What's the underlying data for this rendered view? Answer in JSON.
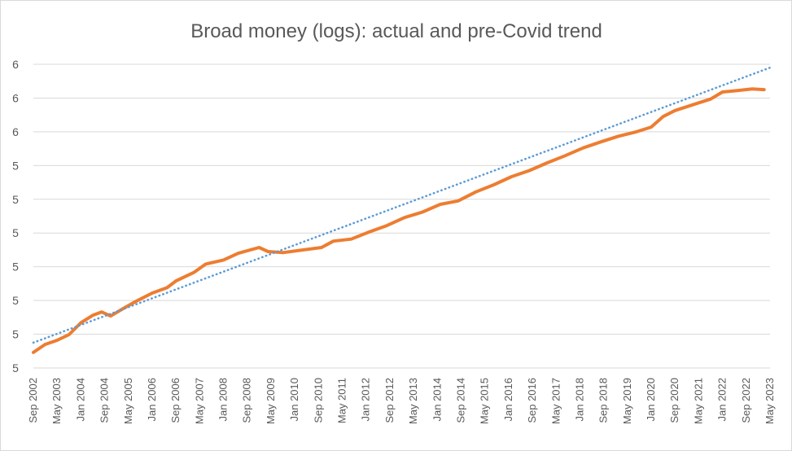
{
  "chart_data": {
    "type": "line",
    "title": "Broad money (logs): actual and pre-Covid trend",
    "xlabel": "",
    "ylabel": "",
    "x_start": "2002-09",
    "x_end": "2023-05",
    "x_tick_labels": [
      "Sep 2002",
      "May 2003",
      "Jan 2004",
      "Sep 2004",
      "May 2005",
      "Jan 2006",
      "Sep 2006",
      "May 2007",
      "Jan 2008",
      "Sep 2008",
      "May 2009",
      "Jan 2010",
      "Sep 2010",
      "May 2011",
      "Jan 2012",
      "Sep 2012",
      "May 2013",
      "Jan 2014",
      "Sep 2014",
      "May 2015",
      "Jan 2016",
      "Sep 2016",
      "May 2017",
      "Jan 2018",
      "Sep 2018",
      "May 2019",
      "Jan 2020",
      "Sep 2020",
      "May 2021",
      "Jan 2022",
      "Sep 2022",
      "May 2023"
    ],
    "y_tick_labels": [
      "5",
      "5",
      "5",
      "5",
      "5",
      "5",
      "5",
      "6",
      "6",
      "6"
    ],
    "ylim": [
      5.2,
      6.1
    ],
    "grid": true,
    "legend": "none",
    "series": [
      {
        "style": "solid",
        "color": "#ED7D31",
        "points": [
          [
            "2002-09",
            5.246
          ],
          [
            "2003-01",
            5.27
          ],
          [
            "2003-05",
            5.282
          ],
          [
            "2003-09",
            5.299
          ],
          [
            "2004-01",
            5.334
          ],
          [
            "2004-05",
            5.356
          ],
          [
            "2004-08",
            5.366
          ],
          [
            "2004-11",
            5.354
          ],
          [
            "2005-03",
            5.375
          ],
          [
            "2005-07",
            5.395
          ],
          [
            "2006-01",
            5.422
          ],
          [
            "2006-06",
            5.438
          ],
          [
            "2006-09",
            5.458
          ],
          [
            "2007-03",
            5.483
          ],
          [
            "2007-07",
            5.508
          ],
          [
            "2008-01",
            5.52
          ],
          [
            "2008-06",
            5.54
          ],
          [
            "2009-01",
            5.557
          ],
          [
            "2009-04",
            5.545
          ],
          [
            "2009-09",
            5.542
          ],
          [
            "2010-04",
            5.55
          ],
          [
            "2010-10",
            5.557
          ],
          [
            "2011-02",
            5.576
          ],
          [
            "2011-08",
            5.582
          ],
          [
            "2012-02",
            5.603
          ],
          [
            "2012-08",
            5.622
          ],
          [
            "2013-02",
            5.646
          ],
          [
            "2013-08",
            5.662
          ],
          [
            "2014-02",
            5.685
          ],
          [
            "2014-08",
            5.695
          ],
          [
            "2015-02",
            5.722
          ],
          [
            "2015-08",
            5.743
          ],
          [
            "2016-02",
            5.767
          ],
          [
            "2016-08",
            5.785
          ],
          [
            "2017-02",
            5.808
          ],
          [
            "2017-08",
            5.829
          ],
          [
            "2018-02",
            5.852
          ],
          [
            "2018-08",
            5.87
          ],
          [
            "2019-02",
            5.887
          ],
          [
            "2019-08",
            5.9
          ],
          [
            "2020-01",
            5.914
          ],
          [
            "2020-05",
            5.945
          ],
          [
            "2020-09",
            5.963
          ],
          [
            "2021-03",
            5.98
          ],
          [
            "2021-09",
            5.997
          ],
          [
            "2022-01",
            6.018
          ],
          [
            "2022-06",
            6.022
          ],
          [
            "2022-11",
            6.027
          ],
          [
            "2023-03",
            6.025
          ]
        ]
      },
      {
        "style": "dotted",
        "color": "#5B9BD5",
        "points": [
          [
            "2002-09",
            5.275
          ],
          [
            "2023-05",
            6.09
          ]
        ]
      }
    ]
  }
}
